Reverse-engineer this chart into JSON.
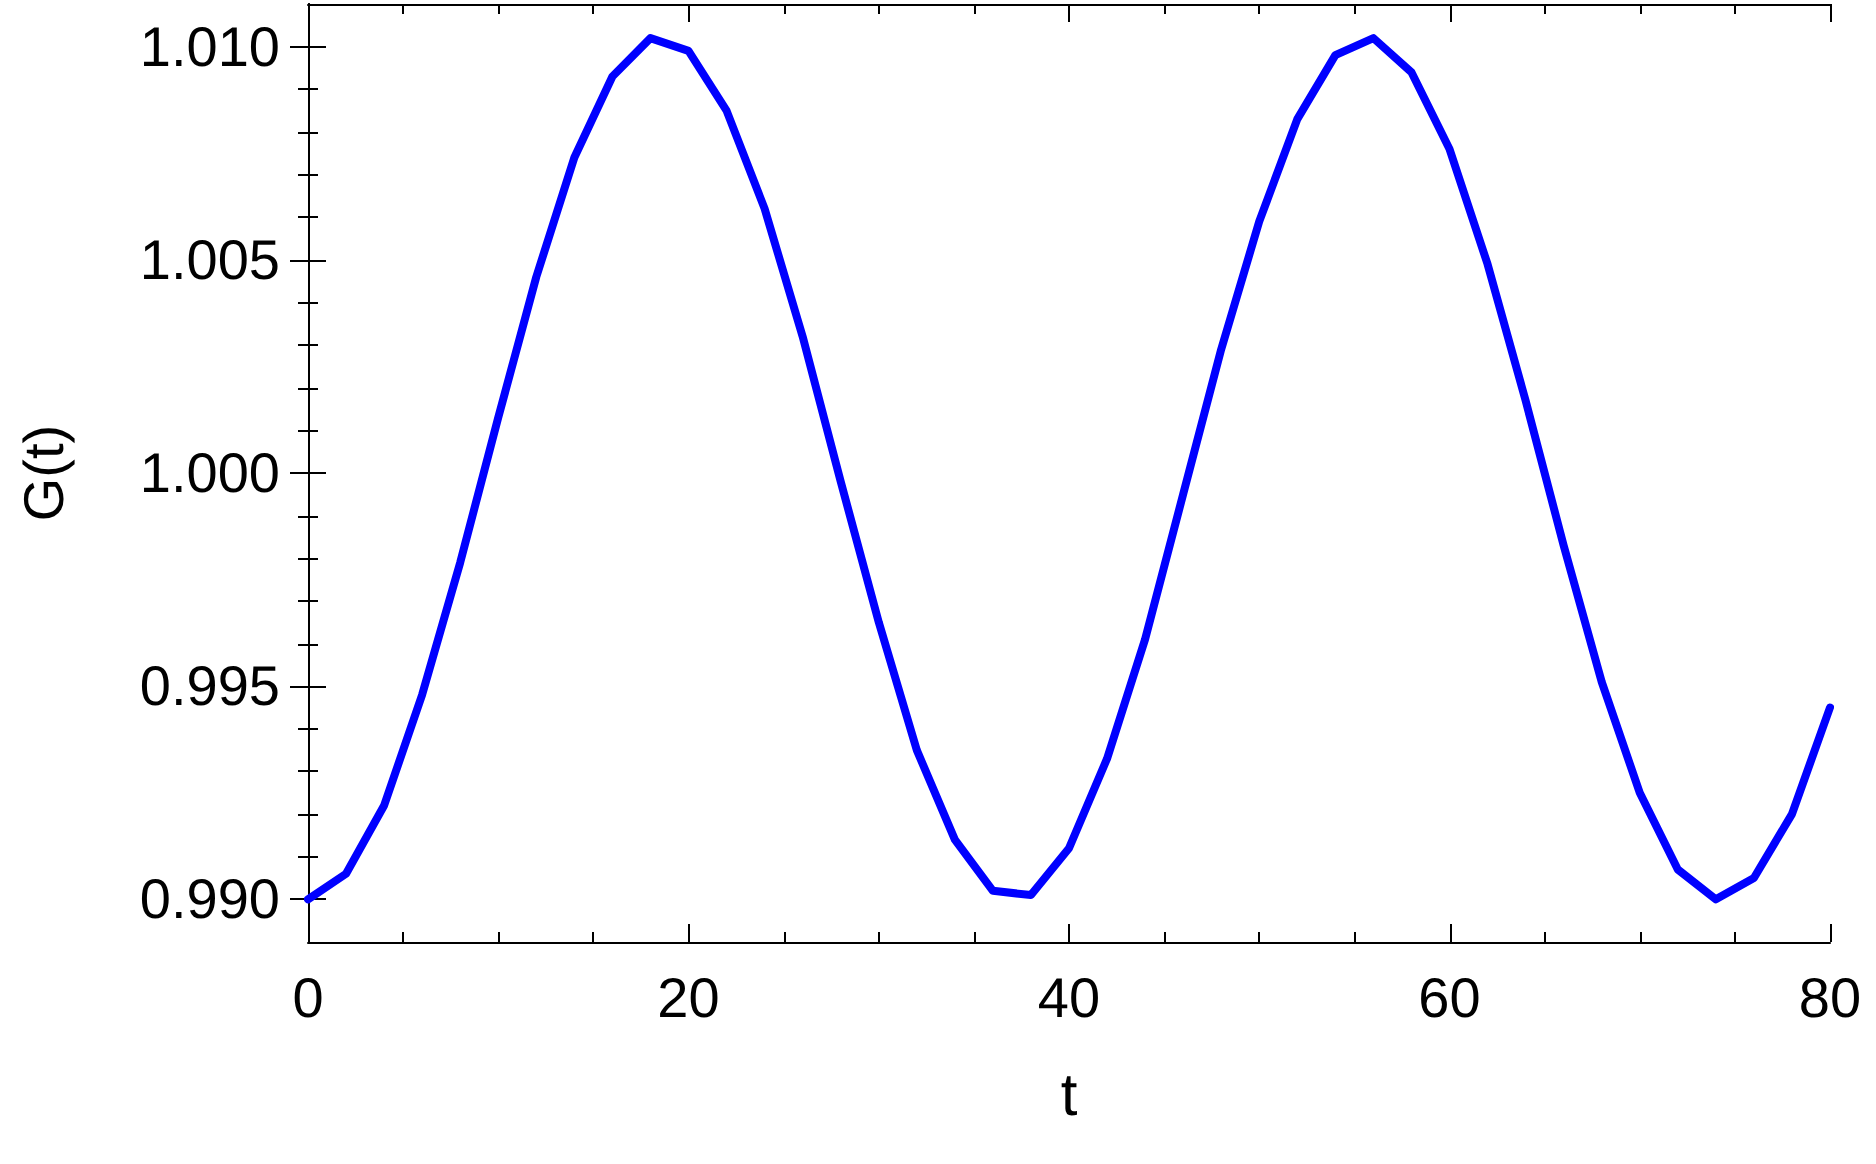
{
  "chart_data": {
    "type": "line",
    "xlabel": "t",
    "ylabel": "G(t)",
    "x": [
      0,
      2,
      4,
      6,
      8,
      10,
      12,
      14,
      16,
      18,
      20,
      22,
      24,
      26,
      28,
      30,
      32,
      34,
      36,
      38,
      40,
      42,
      44,
      46,
      48,
      50,
      52,
      54,
      56,
      58,
      60,
      62,
      64,
      66,
      68,
      70,
      72,
      74,
      76,
      78,
      80
    ],
    "series": [
      {
        "color": "#0000ff",
        "values": [
          0.99,
          0.9906,
          0.9922,
          0.9948,
          0.9979,
          1.0013,
          1.0046,
          1.0074,
          1.0093,
          1.0102,
          1.0099,
          1.0085,
          1.0062,
          1.0032,
          0.9998,
          0.9965,
          0.9935,
          0.9914,
          0.9902,
          0.9901,
          0.9912,
          0.9933,
          0.9961,
          0.9995,
          1.0029,
          1.0059,
          1.0083,
          1.0098,
          1.0102,
          1.0094,
          1.0076,
          1.0049,
          1.0017,
          0.9983,
          0.9951,
          0.9925,
          0.9907,
          0.99,
          0.9905,
          0.992,
          0.9945
        ]
      }
    ],
    "xlim": [
      0,
      80
    ],
    "xticks": [
      0,
      20,
      40,
      60,
      80
    ],
    "ylim": [
      0.989,
      1.011
    ],
    "yticks": [
      {
        "value": 0.99,
        "label": "0.990"
      },
      0.995,
      {
        "value": 1.0,
        "label": "1.000"
      },
      1.005,
      {
        "value": 1.01,
        "label": "1.010"
      }
    ],
    "grid": false,
    "marker": "none",
    "line_style": "solid"
  }
}
